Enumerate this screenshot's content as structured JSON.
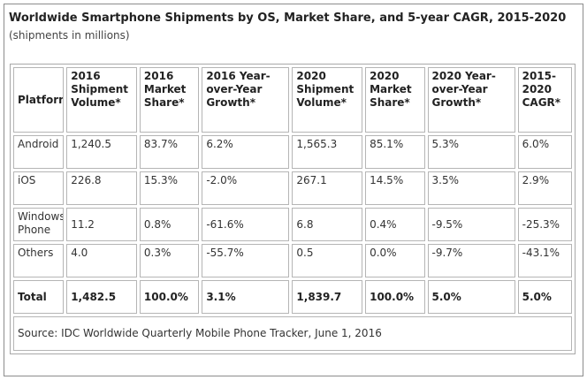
{
  "title": "Worldwide Smartphone Shipments by OS, Market Share, and 5-year CAGR, 2015-2020",
  "subtitle": "(shipments in millions)",
  "columns": [
    "Platform",
    "2016 Shipment Volume*",
    "2016 Market Share*",
    "2016 Year-over-Year Growth*",
    "2020 Shipment Volume*",
    "2020 Market Share*",
    "2020 Year-over-Year Growth*",
    "2015-2020 CAGR*"
  ],
  "rows": [
    [
      "Android",
      "1,240.5",
      "83.7%",
      "6.2%",
      "1,565.3",
      "85.1%",
      "5.3%",
      "6.0%"
    ],
    [
      "iOS",
      "226.8",
      "15.3%",
      "-2.0%",
      "267.1",
      "14.5%",
      "3.5%",
      "2.9%"
    ],
    [
      "Windows Phone",
      "11.2",
      "0.8%",
      "-61.6%",
      "6.8",
      "0.4%",
      "-9.5%",
      "-25.3%"
    ],
    [
      "Others",
      "4.0",
      "0.3%",
      "-55.7%",
      "0.5",
      "0.0%",
      "-9.7%",
      "-43.1%"
    ]
  ],
  "total": [
    "Total",
    "1,482.5",
    "100.0%",
    "3.1%",
    "1,839.7",
    "100.0%",
    "5.0%",
    "5.0%"
  ],
  "source": "Source: IDC Worldwide Quarterly Mobile Phone Tracker, June 1, 2016"
}
